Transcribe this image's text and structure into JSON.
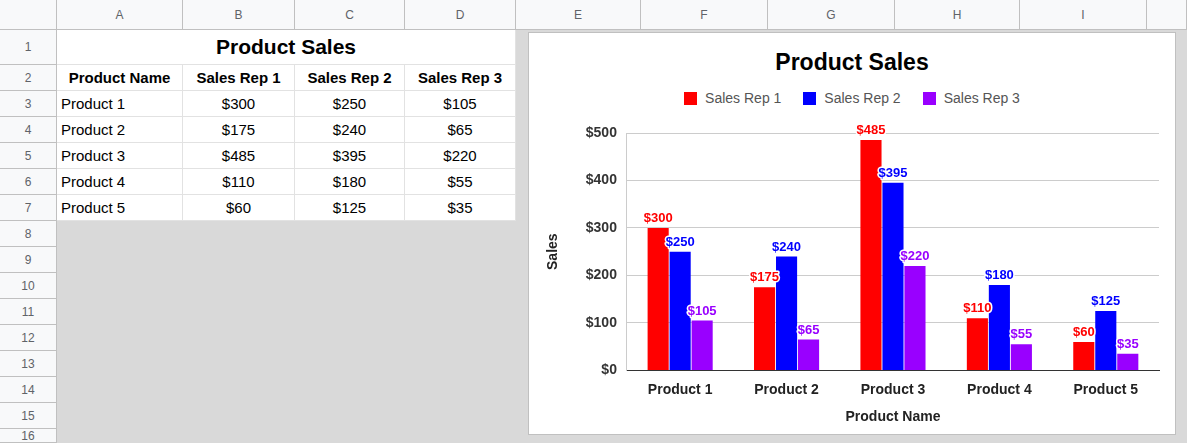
{
  "sheet": {
    "columns": [
      "A",
      "B",
      "C",
      "D",
      "E",
      "F",
      "G",
      "H",
      "I"
    ],
    "rows": [
      1,
      2,
      3,
      4,
      5,
      6,
      7,
      8,
      9,
      10,
      11,
      12,
      13,
      14,
      15,
      16
    ],
    "table": {
      "title": "Product Sales",
      "header": [
        "Product Name",
        "Sales Rep 1",
        "Sales Rep 2",
        "Sales Rep 3"
      ],
      "rows": [
        [
          "Product 1",
          "$300",
          "$250",
          "$105"
        ],
        [
          "Product 2",
          "$175",
          "$240",
          "$65"
        ],
        [
          "Product 3",
          "$485",
          "$395",
          "$220"
        ],
        [
          "Product 4",
          "$110",
          "$180",
          "$55"
        ],
        [
          "Product 5",
          "$60",
          "$125",
          "$35"
        ]
      ]
    }
  },
  "chart_data": {
    "type": "bar",
    "title": "Product Sales",
    "x_label": "Product Name",
    "y_label": "Sales",
    "categories": [
      "Product 1",
      "Product 2",
      "Product 3",
      "Product 4",
      "Product 5"
    ],
    "series": [
      {
        "name": "Sales Rep 1",
        "color": "#ff0000",
        "values": [
          300,
          175,
          485,
          110,
          60
        ],
        "value_labels": [
          "$300",
          "$175",
          "$485",
          "$110",
          "$60"
        ]
      },
      {
        "name": "Sales Rep 2",
        "color": "#0000ff",
        "values": [
          250,
          240,
          395,
          180,
          125
        ],
        "value_labels": [
          "$250",
          "$240",
          "$395",
          "$180",
          "$125"
        ]
      },
      {
        "name": "Sales Rep 3",
        "color": "#9900ff",
        "values": [
          105,
          65,
          220,
          55,
          35
        ],
        "value_labels": [
          "$105",
          "$65",
          "$220",
          "$55",
          "$35"
        ]
      }
    ],
    "ylim": [
      0,
      500
    ],
    "yticks": [
      {
        "value": 0,
        "label": "$0"
      },
      {
        "value": 100,
        "label": "$100"
      },
      {
        "value": 200,
        "label": "$200"
      },
      {
        "value": 300,
        "label": "$300"
      },
      {
        "value": 400,
        "label": "$400"
      },
      {
        "value": 500,
        "label": "$500"
      }
    ],
    "grid": true,
    "legend": "top",
    "data_labels": true
  }
}
